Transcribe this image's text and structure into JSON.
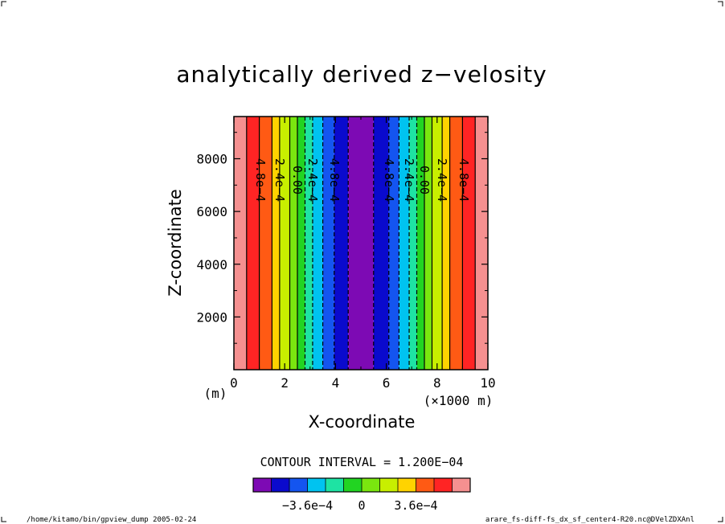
{
  "chart_data": {
    "type": "heatmap",
    "title": "analytically derived z−velosity",
    "xlabel": "X-coordinate",
    "ylabel": "Z-coordinate",
    "x_unit_left": "(m)",
    "x_unit_right": "(×1000 m)",
    "xlim": [
      0,
      10
    ],
    "ylim": [
      0,
      9600
    ],
    "x_ticks": [
      0,
      2,
      4,
      6,
      8,
      10
    ],
    "y_ticks": [
      2000,
      4000,
      6000,
      8000
    ],
    "contour_interval_text": "CONTOUR INTERVAL = 1.200E−04",
    "contour_labels": [
      {
        "x": 1.05,
        "text": "4.8e−4"
      },
      {
        "x": 1.8,
        "text": "2.4e−4"
      },
      {
        "x": 2.5,
        "text": "0.00"
      },
      {
        "x": 3.1,
        "text": "2.4e−4"
      },
      {
        "x": 3.95,
        "text": "4.8e−4"
      },
      {
        "x": 6.1,
        "text": "4.8e−4"
      },
      {
        "x": 6.9,
        "text": "2.4e−4"
      },
      {
        "x": 7.5,
        "text": "0.00"
      },
      {
        "x": 8.2,
        "text": "2.4e−4"
      },
      {
        "x": 9.05,
        "text": "4.8e−4"
      }
    ],
    "bands": [
      {
        "x0": 0.0,
        "x1": 0.5,
        "color": "#f59090"
      },
      {
        "x0": 0.5,
        "x1": 1.0,
        "color": "#ff2424"
      },
      {
        "x0": 1.0,
        "x1": 1.5,
        "color": "#ff5a14"
      },
      {
        "x0": 1.5,
        "x1": 1.8,
        "color": "#ffd300"
      },
      {
        "x0": 1.8,
        "x1": 2.2,
        "color": "#c8ef00"
      },
      {
        "x0": 2.2,
        "x1": 2.5,
        "color": "#7ae60f"
      },
      {
        "x0": 2.5,
        "x1": 2.8,
        "color": "#22d422"
      },
      {
        "x0": 2.8,
        "x1": 3.1,
        "color": "#1ee3a3"
      },
      {
        "x0": 3.1,
        "x1": 3.5,
        "color": "#00c3f0"
      },
      {
        "x0": 3.5,
        "x1": 3.95,
        "color": "#1455f0"
      },
      {
        "x0": 3.95,
        "x1": 4.5,
        "color": "#0a0acd"
      },
      {
        "x0": 4.5,
        "x1": 5.5,
        "color": "#7d0ab4"
      },
      {
        "x0": 5.5,
        "x1": 6.1,
        "color": "#0a0acd"
      },
      {
        "x0": 6.1,
        "x1": 6.5,
        "color": "#1455f0"
      },
      {
        "x0": 6.5,
        "x1": 6.9,
        "color": "#00c3f0"
      },
      {
        "x0": 6.9,
        "x1": 7.2,
        "color": "#1ee3a3"
      },
      {
        "x0": 7.2,
        "x1": 7.5,
        "color": "#22d422"
      },
      {
        "x0": 7.5,
        "x1": 7.8,
        "color": "#7ae60f"
      },
      {
        "x0": 7.8,
        "x1": 8.2,
        "color": "#c8ef00"
      },
      {
        "x0": 8.2,
        "x1": 8.5,
        "color": "#ffd300"
      },
      {
        "x0": 8.5,
        "x1": 9.0,
        "color": "#ff5a14"
      },
      {
        "x0": 9.0,
        "x1": 9.5,
        "color": "#ff2424"
      },
      {
        "x0": 9.5,
        "x1": 10.0,
        "color": "#f59090"
      }
    ],
    "contour_lines": [
      {
        "x": 0.5,
        "dashed": false
      },
      {
        "x": 1.0,
        "dashed": false
      },
      {
        "x": 1.5,
        "dashed": false
      },
      {
        "x": 1.8,
        "dashed": false
      },
      {
        "x": 2.2,
        "dashed": false
      },
      {
        "x": 2.5,
        "dashed": false
      },
      {
        "x": 2.8,
        "dashed": true
      },
      {
        "x": 3.1,
        "dashed": true
      },
      {
        "x": 3.5,
        "dashed": true
      },
      {
        "x": 3.95,
        "dashed": true
      },
      {
        "x": 4.5,
        "dashed": true
      },
      {
        "x": 5.5,
        "dashed": true
      },
      {
        "x": 6.1,
        "dashed": true
      },
      {
        "x": 6.5,
        "dashed": true
      },
      {
        "x": 6.9,
        "dashed": true
      },
      {
        "x": 7.2,
        "dashed": true
      },
      {
        "x": 7.5,
        "dashed": false
      },
      {
        "x": 7.8,
        "dashed": false
      },
      {
        "x": 8.2,
        "dashed": false
      },
      {
        "x": 8.5,
        "dashed": false
      },
      {
        "x": 9.0,
        "dashed": false
      },
      {
        "x": 9.5,
        "dashed": false
      }
    ],
    "colorbar": {
      "colors": [
        "#7d0ab4",
        "#0a0acd",
        "#1455f0",
        "#00c3f0",
        "#1ee3a3",
        "#22d422",
        "#7ae60f",
        "#c8ef00",
        "#ffd300",
        "#ff5a14",
        "#ff2424",
        "#f59090"
      ],
      "tick_labels": [
        {
          "pos": 0.25,
          "text": "−3.6e−4"
        },
        {
          "pos": 0.5,
          "text": "0"
        },
        {
          "pos": 0.75,
          "text": "3.6e−4"
        }
      ]
    }
  },
  "footer": {
    "left": "/home/kitamo/bin/gpview_dump  2005-02-24",
    "right": "arare_fs-diff-fs_dx_sf_center4-R20.nc@DVelZDXAnl"
  }
}
